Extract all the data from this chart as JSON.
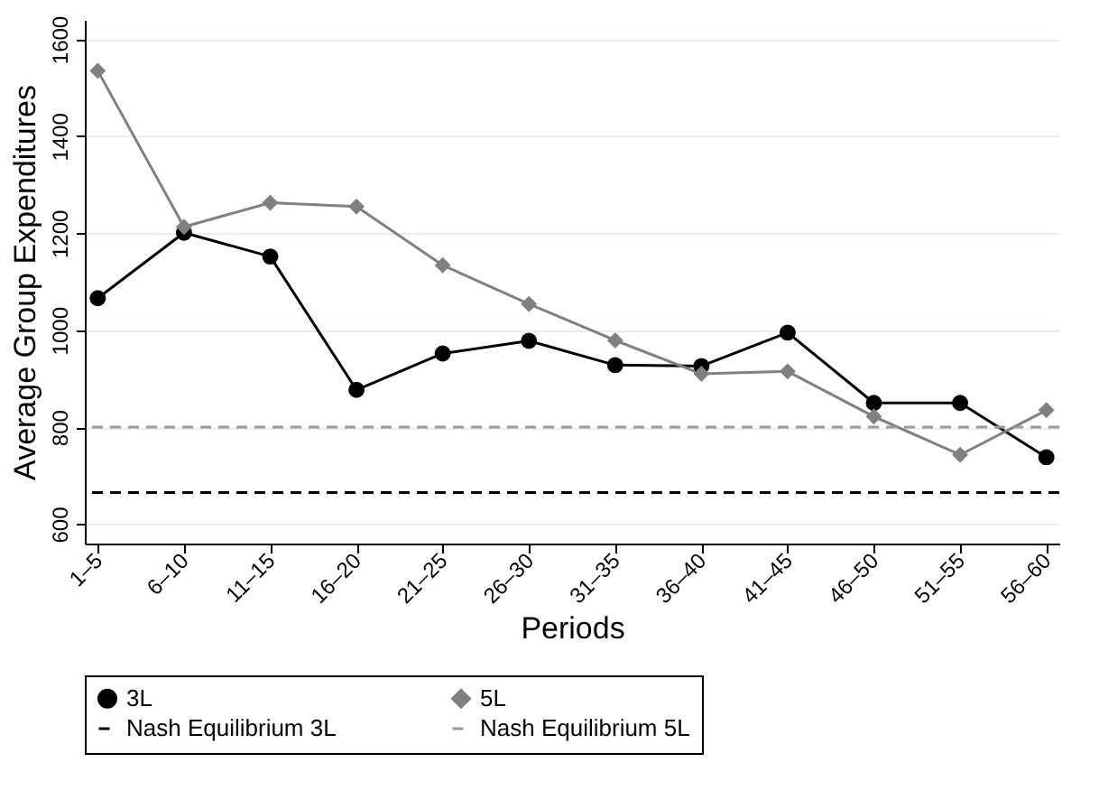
{
  "chart_data": {
    "type": "line",
    "xlabel": "Periods",
    "ylabel": "Average Group Expenditures",
    "categories": [
      "1–5",
      "6–10",
      "11–15",
      "16–20",
      "21–25",
      "26–30",
      "31–35",
      "36–40",
      "41–45",
      "46–50",
      "51–55",
      "56–60"
    ],
    "series": [
      {
        "name": "3L",
        "color": "#000000",
        "marker": "circle",
        "line_style": "solid",
        "values": [
          1066,
          1201,
          1152,
          877,
          952,
          978,
          928,
          926,
          995,
          850,
          850,
          738
        ]
      },
      {
        "name": "5L",
        "color": "#808080",
        "marker": "diamond",
        "line_style": "solid",
        "values": [
          1535,
          1213,
          1263,
          1255,
          1134,
          1054,
          979,
          910,
          915,
          822,
          743,
          835
        ]
      }
    ],
    "ref_lines": [
      {
        "axis": "y",
        "value": 665,
        "label": "Nash Equilibrium 3L",
        "color": "#000000",
        "line_style": "dashed"
      },
      {
        "axis": "y",
        "value": 800,
        "label": "Nash Equilibrium 5L",
        "color": "#999999",
        "line_style": "dashed"
      }
    ],
    "ylim": [
      560,
      1640
    ],
    "yticks": [
      600,
      800,
      1000,
      1200,
      1400,
      1600
    ],
    "grid": "y",
    "legend": "bottom"
  }
}
